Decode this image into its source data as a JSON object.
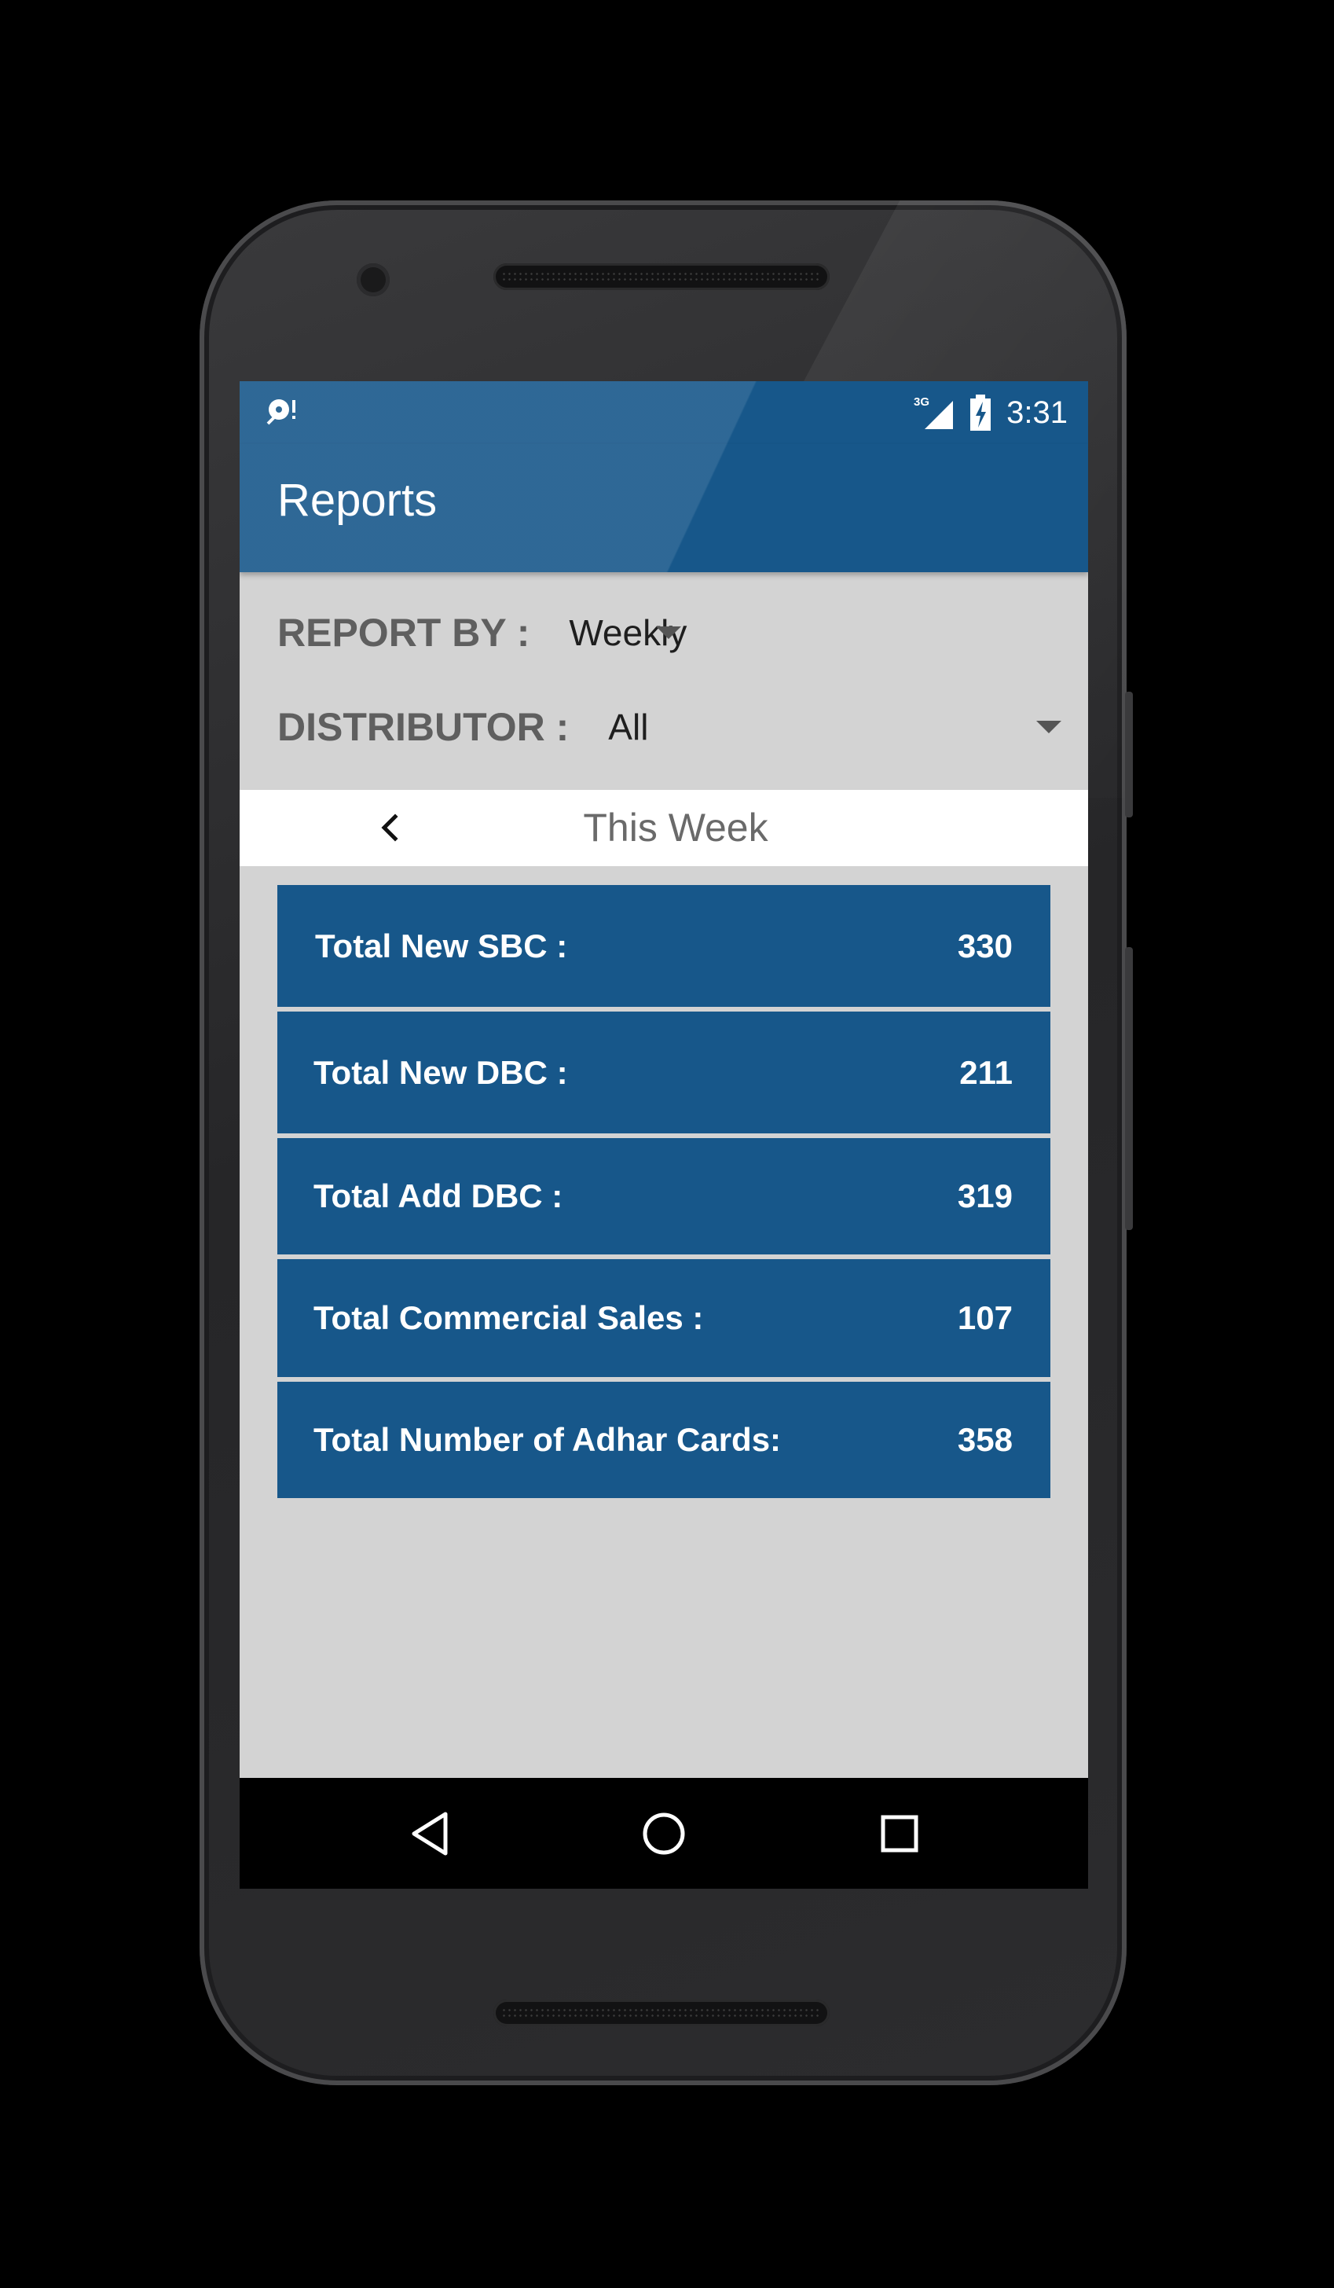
{
  "status_bar": {
    "time": "3:31",
    "network": "3G",
    "icons": [
      "download-notification-icon",
      "signal-icon",
      "battery-charging-icon"
    ]
  },
  "app_bar": {
    "title": "Reports"
  },
  "filters": {
    "report_by": {
      "label": "REPORT BY :",
      "selected": "Weekly"
    },
    "distributor": {
      "label": "DISTRIBUTOR :",
      "selected": "All"
    }
  },
  "period": {
    "label": "This Week",
    "prev_icon": "chevron-left-icon"
  },
  "stats": [
    {
      "label": "Total New SBC :",
      "value": "330"
    },
    {
      "label": "Total New DBC :",
      "value": "211"
    },
    {
      "label": "Total Add DBC :",
      "value": "319"
    },
    {
      "label": "Total Commercial Sales :",
      "value": "107"
    },
    {
      "label": "Total Number of Adhar Cards:",
      "value": "358"
    }
  ],
  "nav_bar": {
    "icons": [
      "back-triangle-icon",
      "home-circle-icon",
      "recents-square-icon"
    ]
  },
  "colors": {
    "primary": "#17578a",
    "background": "#d3d3d3",
    "label_gray": "#5f5f5f"
  }
}
